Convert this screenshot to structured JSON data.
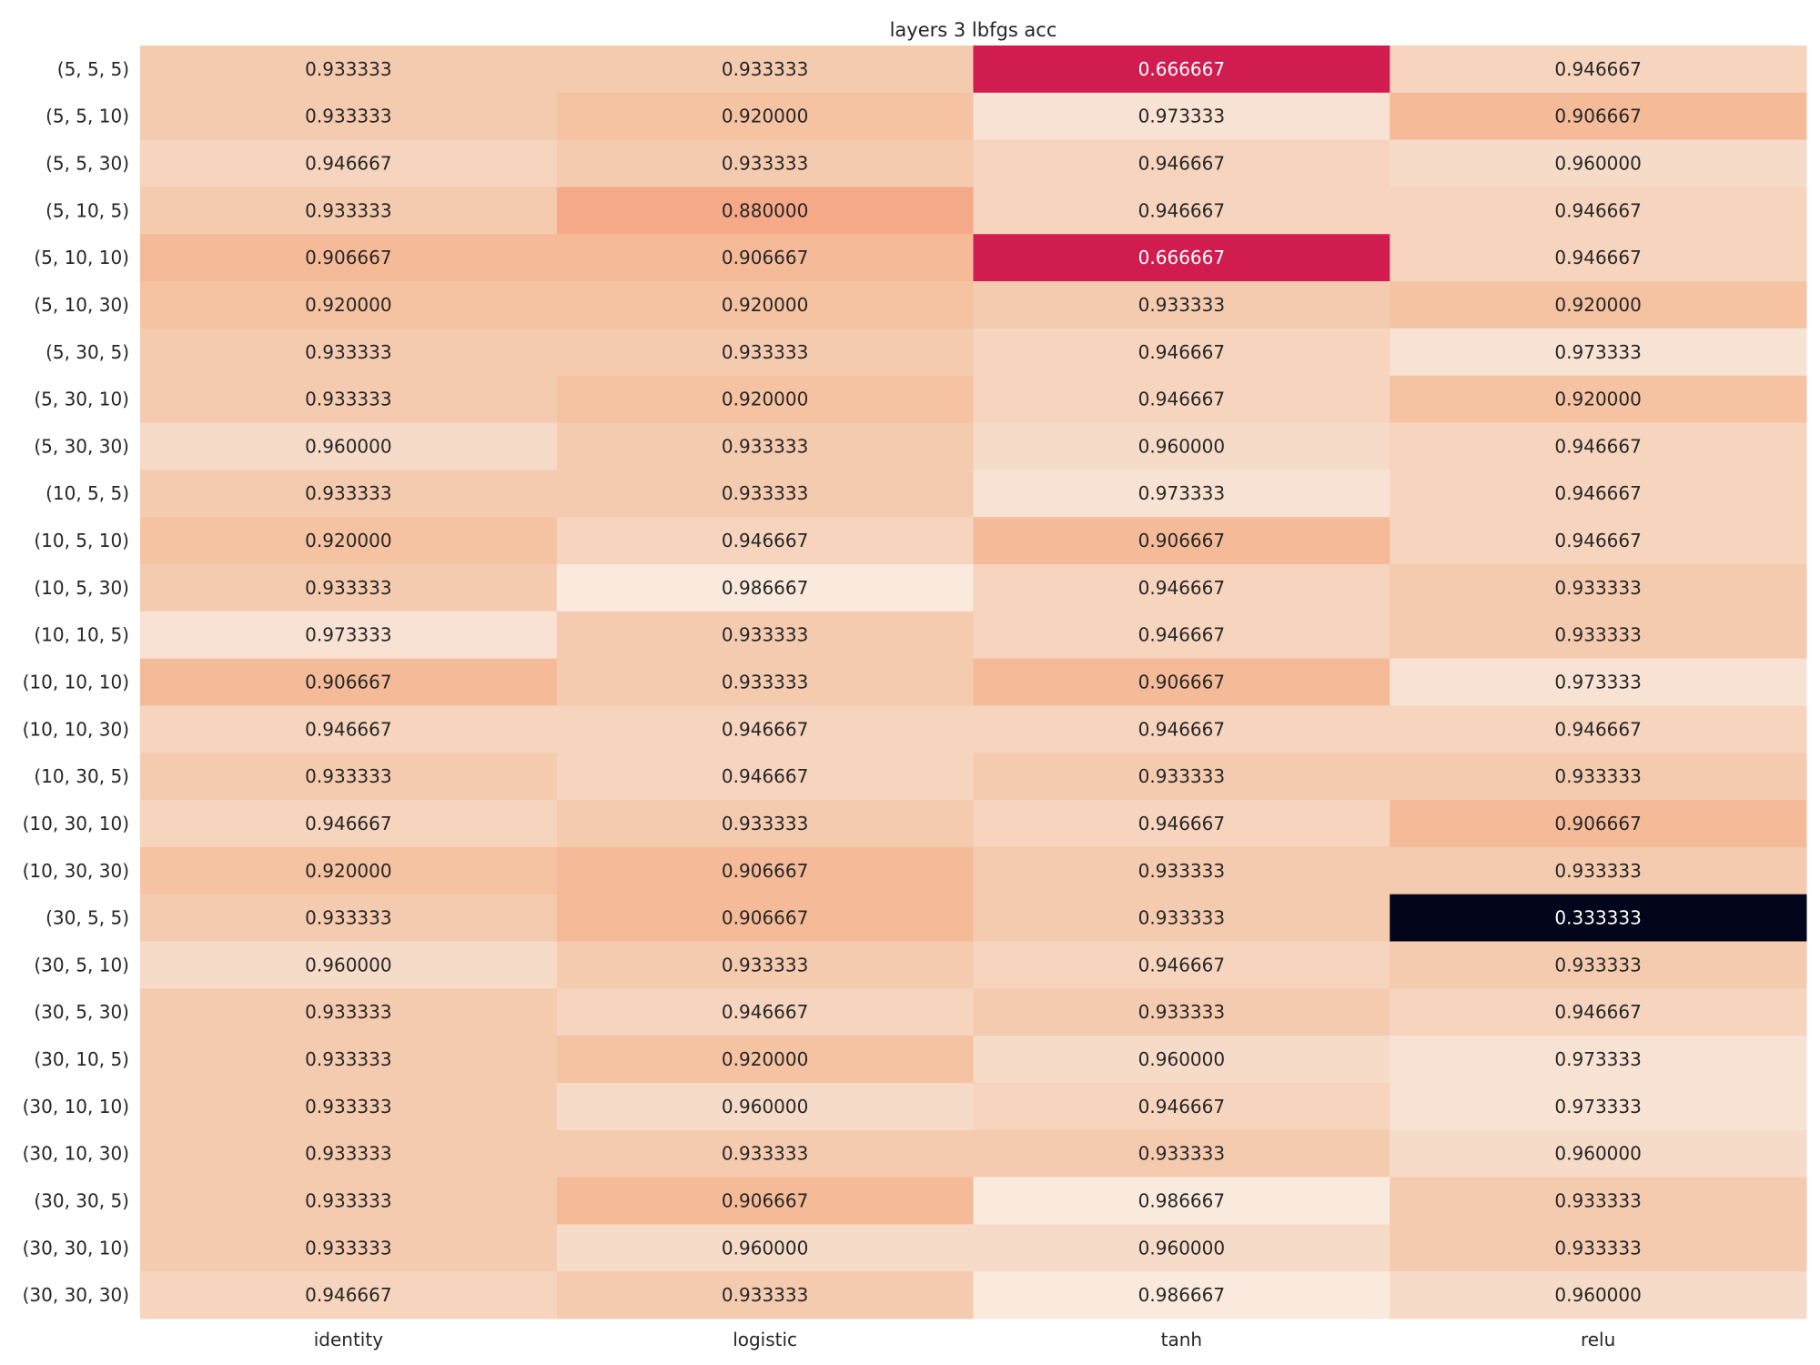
{
  "chart_data": {
    "type": "heatmap",
    "title": "layers 3 lbfgs acc",
    "columns": [
      "identity",
      "logistic",
      "tanh",
      "relu"
    ],
    "rows": [
      "(5, 5, 5)",
      "(5, 5, 10)",
      "(5, 5, 30)",
      "(5, 10, 5)",
      "(5, 10, 10)",
      "(5, 10, 30)",
      "(5, 30, 5)",
      "(5, 30, 10)",
      "(5, 30, 30)",
      "(10, 5, 5)",
      "(10, 5, 10)",
      "(10, 5, 30)",
      "(10, 10, 5)",
      "(10, 10, 10)",
      "(10, 10, 30)",
      "(10, 30, 5)",
      "(10, 30, 10)",
      "(10, 30, 30)",
      "(30, 5, 5)",
      "(30, 5, 10)",
      "(30, 5, 30)",
      "(30, 10, 5)",
      "(30, 10, 10)",
      "(30, 10, 30)",
      "(30, 30, 5)",
      "(30, 30, 10)",
      "(30, 30, 30)"
    ],
    "values": [
      [
        0.933333,
        0.933333,
        0.666667,
        0.946667
      ],
      [
        0.933333,
        0.92,
        0.973333,
        0.906667
      ],
      [
        0.946667,
        0.933333,
        0.946667,
        0.96
      ],
      [
        0.933333,
        0.88,
        0.946667,
        0.946667
      ],
      [
        0.906667,
        0.906667,
        0.666667,
        0.946667
      ],
      [
        0.92,
        0.92,
        0.933333,
        0.92
      ],
      [
        0.933333,
        0.933333,
        0.946667,
        0.973333
      ],
      [
        0.933333,
        0.92,
        0.946667,
        0.92
      ],
      [
        0.96,
        0.933333,
        0.96,
        0.946667
      ],
      [
        0.933333,
        0.933333,
        0.973333,
        0.946667
      ],
      [
        0.92,
        0.946667,
        0.906667,
        0.946667
      ],
      [
        0.933333,
        0.986667,
        0.946667,
        0.933333
      ],
      [
        0.973333,
        0.933333,
        0.946667,
        0.933333
      ],
      [
        0.906667,
        0.933333,
        0.906667,
        0.973333
      ],
      [
        0.946667,
        0.946667,
        0.946667,
        0.946667
      ],
      [
        0.933333,
        0.946667,
        0.933333,
        0.933333
      ],
      [
        0.946667,
        0.933333,
        0.946667,
        0.906667
      ],
      [
        0.92,
        0.906667,
        0.933333,
        0.933333
      ],
      [
        0.933333,
        0.906667,
        0.933333,
        0.333333
      ],
      [
        0.96,
        0.933333,
        0.946667,
        0.933333
      ],
      [
        0.933333,
        0.946667,
        0.933333,
        0.946667
      ],
      [
        0.933333,
        0.92,
        0.96,
        0.973333
      ],
      [
        0.933333,
        0.96,
        0.946667,
        0.973333
      ],
      [
        0.933333,
        0.933333,
        0.933333,
        0.96
      ],
      [
        0.933333,
        0.906667,
        0.986667,
        0.933333
      ],
      [
        0.933333,
        0.96,
        0.96,
        0.933333
      ],
      [
        0.946667,
        0.933333,
        0.986667,
        0.96
      ]
    ],
    "value_format": "6 decimals",
    "colormap": "rocket",
    "color_scale": {
      "0.333333": "#03051a",
      "0.666667": "#d11c50",
      "0.880000": "#f5a988",
      "0.906667": "#f5ba97",
      "0.920000": "#f5c2a2",
      "0.933333": "#f5cbb0",
      "0.946667": "#f6d4bd",
      "0.960000": "#f6dbc8",
      "0.973333": "#f8e2d3",
      "0.986667": "#faeadd"
    },
    "light_text_color": "#ffffff",
    "dark_text_color": "#262626",
    "grid": false,
    "colorbar": false
  }
}
